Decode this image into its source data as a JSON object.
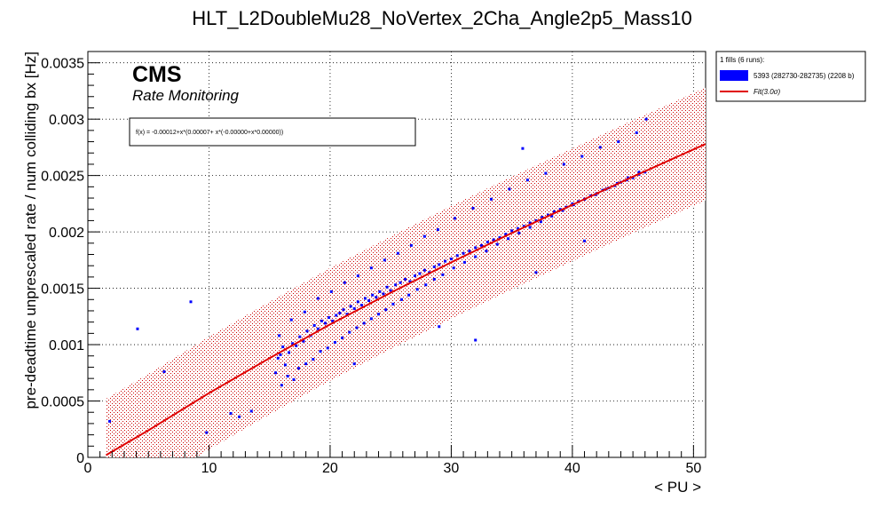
{
  "chart_data": {
    "type": "scatter",
    "title": "HLT_L2DoubleMu28_NoVertex_2Cha_Angle2p5_Mass10",
    "xlabel": "< PU >",
    "ylabel": "pre-deadtime unprescaled rate / num colliding bx [Hz]",
    "xlim": [
      0,
      51
    ],
    "ylim": [
      0,
      0.0036
    ],
    "x_ticks": [
      0,
      10,
      20,
      30,
      40,
      50
    ],
    "x_tick_labels": [
      "0",
      "10",
      "20",
      "30",
      "40",
      "50"
    ],
    "y_ticks": [
      0,
      0.0005,
      0.001,
      0.0015,
      0.002,
      0.0025,
      0.003,
      0.0035
    ],
    "y_tick_labels": [
      "0",
      "0.0005",
      "0.001",
      "0.0015",
      "0.002",
      "0.0025",
      "0.003",
      "0.0035"
    ],
    "grid": true,
    "legend_position": "right",
    "cms_label": "CMS",
    "cms_sublabel": "Rate Monitoring",
    "fit_formula": "f(x) = -0.00012+x*(0.00007+ x*(-0.00000+x*0.00000))",
    "legend": {
      "header": "1 fills (6 runs):",
      "entries": [
        {
          "label": "5393 (282730-282735) (2208 b)",
          "color": "#0000ff",
          "kind": "box"
        },
        {
          "label": "Fit(3.0σ)",
          "color": "#e00000",
          "kind": "line"
        }
      ]
    },
    "colors": {
      "points": "#0000ff",
      "fit": "#e00000",
      "band": "#cc0000"
    },
    "fit_curve": {
      "x": [
        1.5,
        5,
        10,
        15,
        20,
        25,
        30,
        35,
        40,
        45,
        51
      ],
      "y": [
        2e-05,
        0.00024,
        0.00057,
        0.00088,
        0.00118,
        0.00146,
        0.00173,
        0.00199,
        0.00224,
        0.00249,
        0.00278
      ]
    },
    "band_halfwidth": 0.0005,
    "series": [
      {
        "name": "5393 (282730-282735) (2208 b)",
        "x": [
          1.8,
          4.1,
          6.3,
          8.5,
          9.8,
          11.8,
          12.5,
          15.5,
          15.7,
          15.9,
          16.1,
          16.3,
          16.6,
          16.9,
          17.2,
          17.5,
          17.8,
          18.1,
          18.4,
          18.7,
          19.0,
          19.3,
          19.6,
          19.9,
          20.2,
          20.5,
          20.8,
          21.1,
          21.4,
          21.7,
          22.0,
          22.3,
          22.6,
          22.9,
          23.2,
          23.5,
          23.8,
          24.1,
          24.4,
          24.7,
          25.0,
          25.4,
          25.8,
          26.2,
          26.6,
          27.0,
          27.4,
          27.8,
          28.2,
          28.6,
          29.0,
          29.5,
          30.0,
          30.5,
          31.0,
          31.5,
          32.0,
          32.5,
          33.0,
          33.5,
          34.0,
          34.5,
          35.0,
          35.5,
          36.0,
          36.5,
          37.0,
          37.5,
          38.0,
          38.5,
          39.0,
          39.5,
          40.0,
          40.5,
          41.0,
          41.5,
          42.0,
          42.5,
          43.0,
          43.5,
          44.0,
          44.5,
          45.0,
          45.5,
          46.0,
          16.0,
          16.5,
          17.0,
          17.4,
          18.0,
          18.6,
          19.2,
          19.8,
          20.4,
          21.0,
          21.6,
          22.2,
          22.8,
          23.4,
          24.0,
          24.6,
          25.2,
          25.9,
          26.5,
          27.2,
          27.9,
          28.6,
          29.3,
          30.2,
          31.1,
          32.0,
          32.9,
          33.8,
          34.7,
          35.6,
          36.5,
          37.4,
          38.3,
          39.2,
          40.1,
          41.0,
          41.9,
          42.8,
          43.7,
          44.6,
          45.5,
          15.8,
          16.8,
          17.9,
          19.0,
          20.1,
          21.2,
          22.3,
          23.4,
          24.5,
          25.6,
          26.7,
          27.8,
          28.9,
          30.3,
          31.8,
          33.3,
          34.8,
          36.3,
          37.8,
          39.3,
          40.8,
          42.3,
          43.8,
          45.3,
          35.9,
          32.0,
          29.0,
          13.5,
          46.1,
          41.0,
          37.0,
          22.0
        ],
        "y": [
          0.00032,
          0.00114,
          0.00076,
          0.00138,
          0.00022,
          0.00039,
          0.00036,
          0.00075,
          0.00088,
          0.00091,
          0.00098,
          0.00082,
          0.00093,
          0.00101,
          0.00099,
          0.00107,
          0.00103,
          0.00112,
          0.00108,
          0.00117,
          0.00114,
          0.00121,
          0.00119,
          0.00124,
          0.00121,
          0.00126,
          0.00128,
          0.00131,
          0.00127,
          0.00134,
          0.00132,
          0.00138,
          0.00135,
          0.00141,
          0.00139,
          0.00144,
          0.00142,
          0.00147,
          0.00145,
          0.00151,
          0.00148,
          0.00153,
          0.00155,
          0.00158,
          0.00156,
          0.00161,
          0.00163,
          0.00166,
          0.00164,
          0.00169,
          0.00171,
          0.00174,
          0.00176,
          0.00179,
          0.00181,
          0.00183,
          0.00186,
          0.00188,
          0.00191,
          0.00193,
          0.00195,
          0.00198,
          0.00201,
          0.00203,
          0.00205,
          0.00208,
          0.0021,
          0.00213,
          0.00215,
          0.00218,
          0.0022,
          0.00222,
          0.00225,
          0.00227,
          0.00229,
          0.00232,
          0.00234,
          0.00237,
          0.00239,
          0.00241,
          0.00244,
          0.00246,
          0.00248,
          0.00251,
          0.00253,
          0.00064,
          0.00072,
          0.00069,
          0.00079,
          0.00083,
          0.00087,
          0.00094,
          0.00097,
          0.00102,
          0.00106,
          0.00111,
          0.00115,
          0.00119,
          0.00123,
          0.00127,
          0.00131,
          0.00136,
          0.0014,
          0.00144,
          0.00149,
          0.00153,
          0.00158,
          0.00162,
          0.00168,
          0.00173,
          0.00178,
          0.00183,
          0.00189,
          0.00194,
          0.00199,
          0.00204,
          0.00209,
          0.00214,
          0.00219,
          0.00224,
          0.00229,
          0.00233,
          0.00238,
          0.00243,
          0.00248,
          0.00253,
          0.00108,
          0.00122,
          0.00129,
          0.00141,
          0.00147,
          0.00155,
          0.00161,
          0.00168,
          0.00175,
          0.00181,
          0.00188,
          0.00196,
          0.00202,
          0.00212,
          0.00221,
          0.00229,
          0.00238,
          0.00246,
          0.00252,
          0.0026,
          0.00267,
          0.00275,
          0.0028,
          0.00288,
          0.00274,
          0.00104,
          0.00116,
          0.00041,
          0.003,
          0.00192,
          0.00164,
          0.00083
        ]
      }
    ]
  }
}
